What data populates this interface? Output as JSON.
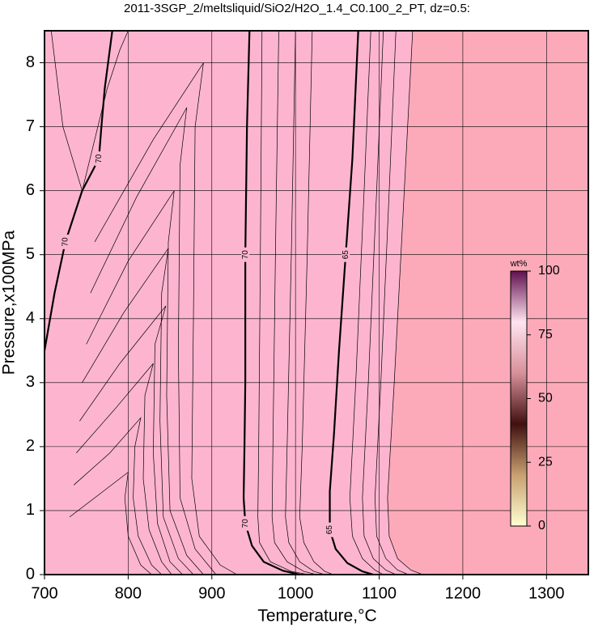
{
  "chart_data": {
    "type": "contour",
    "title": "2011-3SGP_2/meltsliquid/SiO2/H2O_1.4_C0.100_2_PT, dz=0.5:",
    "xlabel": "Temperature,°C",
    "ylabel": "Pressure,x100MPa",
    "xlim": [
      700,
      1350
    ],
    "ylim": [
      0,
      8.5
    ],
    "xticks": [
      700,
      800,
      900,
      1000,
      1100,
      1200,
      1300
    ],
    "yticks": [
      0,
      1,
      2,
      3,
      4,
      5,
      6,
      7,
      8
    ],
    "grid": true,
    "background": "#fdb5cf",
    "right_fill": "#fcaab9",
    "contours": [
      {
        "level": 70,
        "bold": true,
        "x": [
          700,
          712,
          725,
          745,
          765,
          768,
          772,
          778,
          781
        ],
        "y": [
          3.5,
          4.4,
          5.2,
          6.0,
          6.5,
          7.0,
          7.6,
          8.2,
          8.5
        ]
      },
      {
        "level": 70,
        "bold": true,
        "x": [
          945,
          942,
          940,
          940,
          939,
          938,
          940,
          948,
          962,
          985,
          1005
        ],
        "y": [
          8.5,
          7.0,
          5.0,
          3.0,
          2.0,
          1.2,
          0.8,
          0.45,
          0.2,
          0.06,
          0
        ]
      },
      {
        "level": 65,
        "bold": true,
        "x": [
          1075,
          1068,
          1060,
          1052,
          1046,
          1041,
          1041,
          1048,
          1062,
          1080,
          1093
        ],
        "y": [
          8.5,
          6.5,
          5.0,
          3.5,
          2.2,
          1.3,
          0.7,
          0.4,
          0.18,
          0.05,
          0
        ]
      },
      {
        "x": [
          760,
          830,
          890,
          880,
          878,
          876,
          885,
          910,
          930
        ],
        "y": [
          5.2,
          6.8,
          8.0,
          7.0,
          4.0,
          1.5,
          0.6,
          0.15,
          0
        ]
      },
      {
        "x": [
          755,
          810,
          870,
          862,
          860,
          862,
          880,
          905
        ],
        "y": [
          4.4,
          5.9,
          7.3,
          6.4,
          3.5,
          1.2,
          0.4,
          0
        ]
      },
      {
        "x": [
          750,
          800,
          855,
          848,
          846,
          850,
          870,
          890
        ],
        "y": [
          3.6,
          4.9,
          6.0,
          5.2,
          2.8,
          1.0,
          0.3,
          0
        ]
      },
      {
        "x": [
          745,
          795,
          848,
          840,
          838,
          842,
          860,
          878
        ],
        "y": [
          3.0,
          4.1,
          5.1,
          4.4,
          2.4,
          0.9,
          0.25,
          0
        ]
      },
      {
        "x": [
          742,
          790,
          845,
          832,
          830,
          835,
          850,
          865
        ],
        "y": [
          2.4,
          3.3,
          4.2,
          3.6,
          1.9,
          0.8,
          0.2,
          0
        ]
      },
      {
        "x": [
          738,
          785,
          830,
          820,
          818,
          825,
          840,
          852
        ],
        "y": [
          1.9,
          2.6,
          3.3,
          2.8,
          1.5,
          0.7,
          0.2,
          0
        ]
      },
      {
        "x": [
          735,
          778,
          815,
          808,
          806,
          812,
          828,
          840
        ],
        "y": [
          1.4,
          1.9,
          2.45,
          2.0,
          1.2,
          0.6,
          0.15,
          0
        ]
      },
      {
        "x": [
          730,
          770,
          800,
          796,
          800,
          815,
          828
        ],
        "y": [
          0.9,
          1.3,
          1.6,
          1.2,
          0.6,
          0.15,
          0
        ]
      },
      {
        "x": [
          708,
          722,
          745,
          760,
          775,
          790,
          800
        ],
        "y": [
          8.5,
          7.0,
          6.0,
          6.8,
          7.6,
          8.2,
          8.5
        ]
      },
      {
        "x": [
          960,
          958,
          956,
          955,
          957,
          970,
          995,
          1015
        ],
        "y": [
          8.5,
          5.0,
          2.0,
          0.9,
          0.5,
          0.2,
          0.05,
          0
        ]
      },
      {
        "x": [
          980,
          976,
          973,
          972,
          975,
          990,
          1010,
          1025
        ],
        "y": [
          8.5,
          5.0,
          2.0,
          0.9,
          0.5,
          0.2,
          0.05,
          0
        ]
      },
      {
        "x": [
          1000,
          995,
          990,
          988,
          992,
          1005,
          1022,
          1035
        ],
        "y": [
          8.5,
          5.0,
          2.0,
          0.9,
          0.5,
          0.2,
          0.05,
          0
        ]
      },
      {
        "x": [
          1020,
          1014,
          1008,
          1005,
          1010,
          1022,
          1035,
          1045
        ],
        "y": [
          8.5,
          5.0,
          2.0,
          0.9,
          0.5,
          0.2,
          0.05,
          0
        ]
      },
      {
        "x": [
          1090,
          1082,
          1072,
          1065,
          1068,
          1080,
          1095,
          1105
        ],
        "y": [
          8.5,
          6.0,
          3.0,
          1.2,
          0.6,
          0.25,
          0.07,
          0
        ]
      },
      {
        "x": [
          1105,
          1097,
          1087,
          1080,
          1082,
          1093,
          1108,
          1120
        ],
        "y": [
          8.5,
          6.0,
          3.0,
          1.2,
          0.6,
          0.25,
          0.07,
          0
        ]
      },
      {
        "x": [
          1120,
          1112,
          1102,
          1095,
          1097,
          1108,
          1122,
          1135
        ],
        "y": [
          8.5,
          6.0,
          3.0,
          1.2,
          0.6,
          0.25,
          0.07,
          0
        ]
      },
      {
        "x": [
          1140,
          1130,
          1118,
          1110,
          1112,
          1122,
          1138,
          1152
        ],
        "y": [
          8.5,
          6.0,
          3.0,
          1.2,
          0.6,
          0.25,
          0.07,
          0
        ]
      }
    ],
    "colorbar": {
      "label": "wt%",
      "lim": [
        0,
        100
      ],
      "ticks": [
        0,
        25,
        50,
        75,
        100
      ],
      "colors": [
        "#ffffd0",
        "#c8a070",
        "#401010",
        "#d8909a",
        "#ffe4f0",
        "#601050"
      ]
    }
  }
}
